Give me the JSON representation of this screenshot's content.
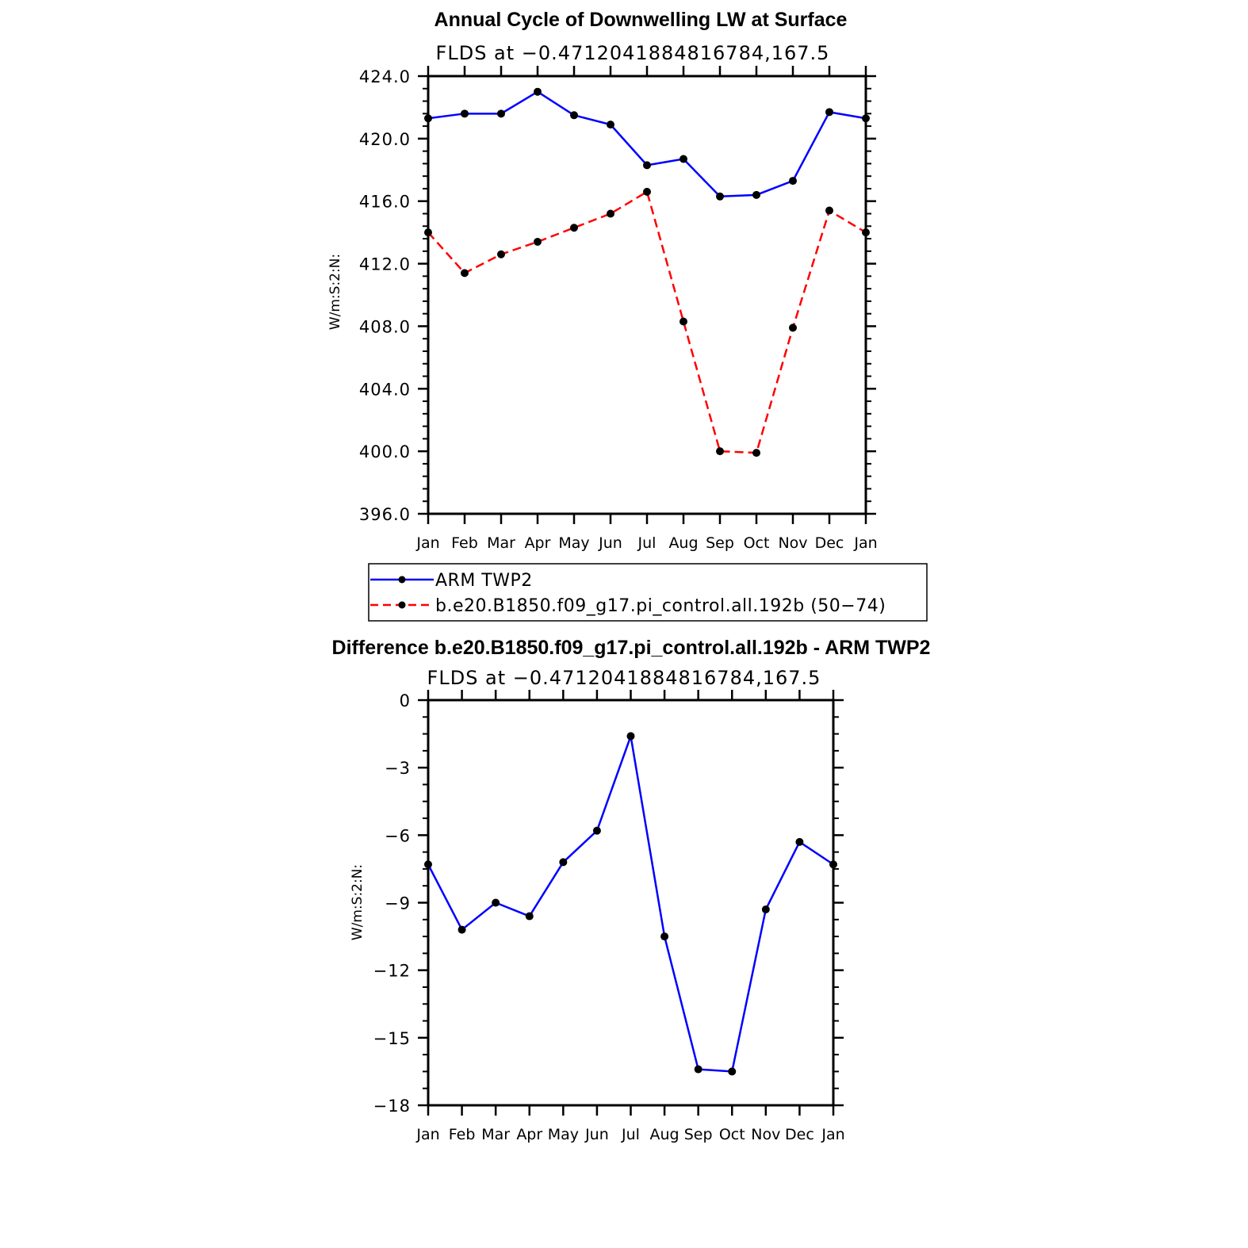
{
  "chart_data": [
    {
      "type": "line",
      "title": "Annual Cycle of Downwelling LW at Surface",
      "subtitle": "FLDS at −0.4712041884816784,167.5",
      "xlabel": "",
      "ylabel": "W/m:S:2:N:",
      "categories": [
        "Jan",
        "Feb",
        "Mar",
        "Apr",
        "May",
        "Jun",
        "Jul",
        "Aug",
        "Sep",
        "Oct",
        "Nov",
        "Dec",
        "Jan"
      ],
      "ylim": [
        396.0,
        424.0
      ],
      "yticks": [
        "396.0",
        "400.0",
        "404.0",
        "408.0",
        "412.0",
        "416.0",
        "420.0",
        "424.0"
      ],
      "grid": false,
      "legend_placement": "below",
      "series": [
        {
          "name": "ARM TWP2",
          "color": "#0000ff",
          "dash": "solid",
          "values": [
            421.3,
            421.6,
            421.6,
            423.0,
            421.5,
            420.9,
            418.3,
            418.7,
            416.3,
            416.4,
            417.3,
            421.7,
            421.3
          ]
        },
        {
          "name": "b.e20.B1850.f09_g17.pi_control.all.192b (50−74)",
          "color": "#ff0000",
          "dash": "dashed",
          "values": [
            414.0,
            411.4,
            412.6,
            413.4,
            414.3,
            415.2,
            416.6,
            408.3,
            400.0,
            399.9,
            407.9,
            415.4,
            414.0
          ]
        }
      ]
    },
    {
      "type": "line",
      "title": "Difference b.e20.B1850.f09_g17.pi_control.all.192b - ARM TWP2",
      "subtitle": "FLDS at −0.4712041884816784,167.5",
      "xlabel": "",
      "ylabel": "W/m:S:2:N:",
      "categories": [
        "Jan",
        "Feb",
        "Mar",
        "Apr",
        "May",
        "Jun",
        "Jul",
        "Aug",
        "Sep",
        "Oct",
        "Nov",
        "Dec",
        "Jan"
      ],
      "ylim": [
        -18,
        0
      ],
      "yticks": [
        "−18",
        "−15",
        "−12",
        "−9",
        "−6",
        "−3",
        "0"
      ],
      "grid": false,
      "series": [
        {
          "color": "#0000ff",
          "dash": "solid",
          "values": [
            -7.3,
            -10.2,
            -9.0,
            -9.6,
            -7.2,
            -5.8,
            -1.6,
            -10.5,
            -16.4,
            -16.5,
            -9.3,
            -6.3,
            -7.3
          ]
        }
      ]
    }
  ]
}
